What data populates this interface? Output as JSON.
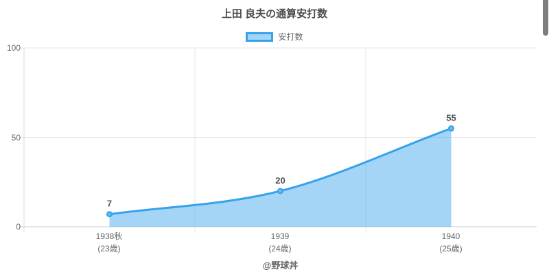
{
  "title": "上田 良夫の通算安打数",
  "legend": {
    "label": "安打数"
  },
  "footer": "@野球丼",
  "colors": {
    "line": "#36a2eb",
    "area_fill": "rgba(54,162,235,0.45)",
    "point_fill": "#6cb9ef",
    "grid": "#e5e5e5",
    "axis_line": "#c9c9c9",
    "vertical_axis": "#dcdcdc",
    "tick_text": "#666666",
    "title_text": "#4c4c4c",
    "data_label_text": "#545454",
    "scrollbar": "#7d7d7d"
  },
  "chart_data": {
    "type": "area",
    "title": "上田 良夫の通算安打数",
    "series": [
      {
        "name": "安打数",
        "values": [
          7,
          20,
          55
        ]
      }
    ],
    "categories": [
      "1938秋 (23歳)",
      "1939 (24歳)",
      "1940 (25歳)"
    ],
    "x_tick_lines": [
      [
        "1938秋",
        "(23歳)"
      ],
      [
        "1939",
        "(24歳)"
      ],
      [
        "1940",
        "(25歳)"
      ]
    ],
    "yticks": [
      0,
      50,
      100
    ],
    "ylim": [
      0,
      100
    ],
    "grid": true,
    "legend_position": "top",
    "line_smoothing": "monotone",
    "area_from_first_to_last_point": true,
    "footer": "@野球丼"
  }
}
